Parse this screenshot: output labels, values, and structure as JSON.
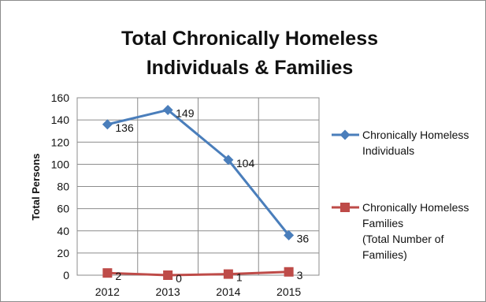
{
  "chart_data": {
    "type": "line",
    "title_lines": [
      "Total Chronically Homeless",
      "Individuals & Families"
    ],
    "xlabel": "",
    "ylabel": "Total Persons",
    "categories": [
      "2012",
      "2013",
      "2014",
      "2015"
    ],
    "ylim": [
      0,
      160
    ],
    "yticks": [
      "0",
      "20",
      "40",
      "60",
      "80",
      "100",
      "120",
      "140",
      "160"
    ],
    "grid": true,
    "legend_position": "right",
    "series": [
      {
        "name": "Chronically Homeless Individuals",
        "legend_lines": [
          "Chronically Homeless",
          "Individuals"
        ],
        "values": [
          136,
          149,
          104,
          36
        ],
        "labels": [
          "136",
          "149",
          "104",
          "36"
        ],
        "color": "#4a7ebb",
        "marker": "diamond"
      },
      {
        "name": "Chronically Homeless Families (Total Number of Families)",
        "legend_lines": [
          "Chronically Homeless",
          "Families",
          "(Total Number of",
          "Families)"
        ],
        "values": [
          2,
          0,
          1,
          3
        ],
        "labels": [
          "2",
          "0",
          "1",
          "3"
        ],
        "color": "#be4b48",
        "marker": "square"
      }
    ]
  }
}
